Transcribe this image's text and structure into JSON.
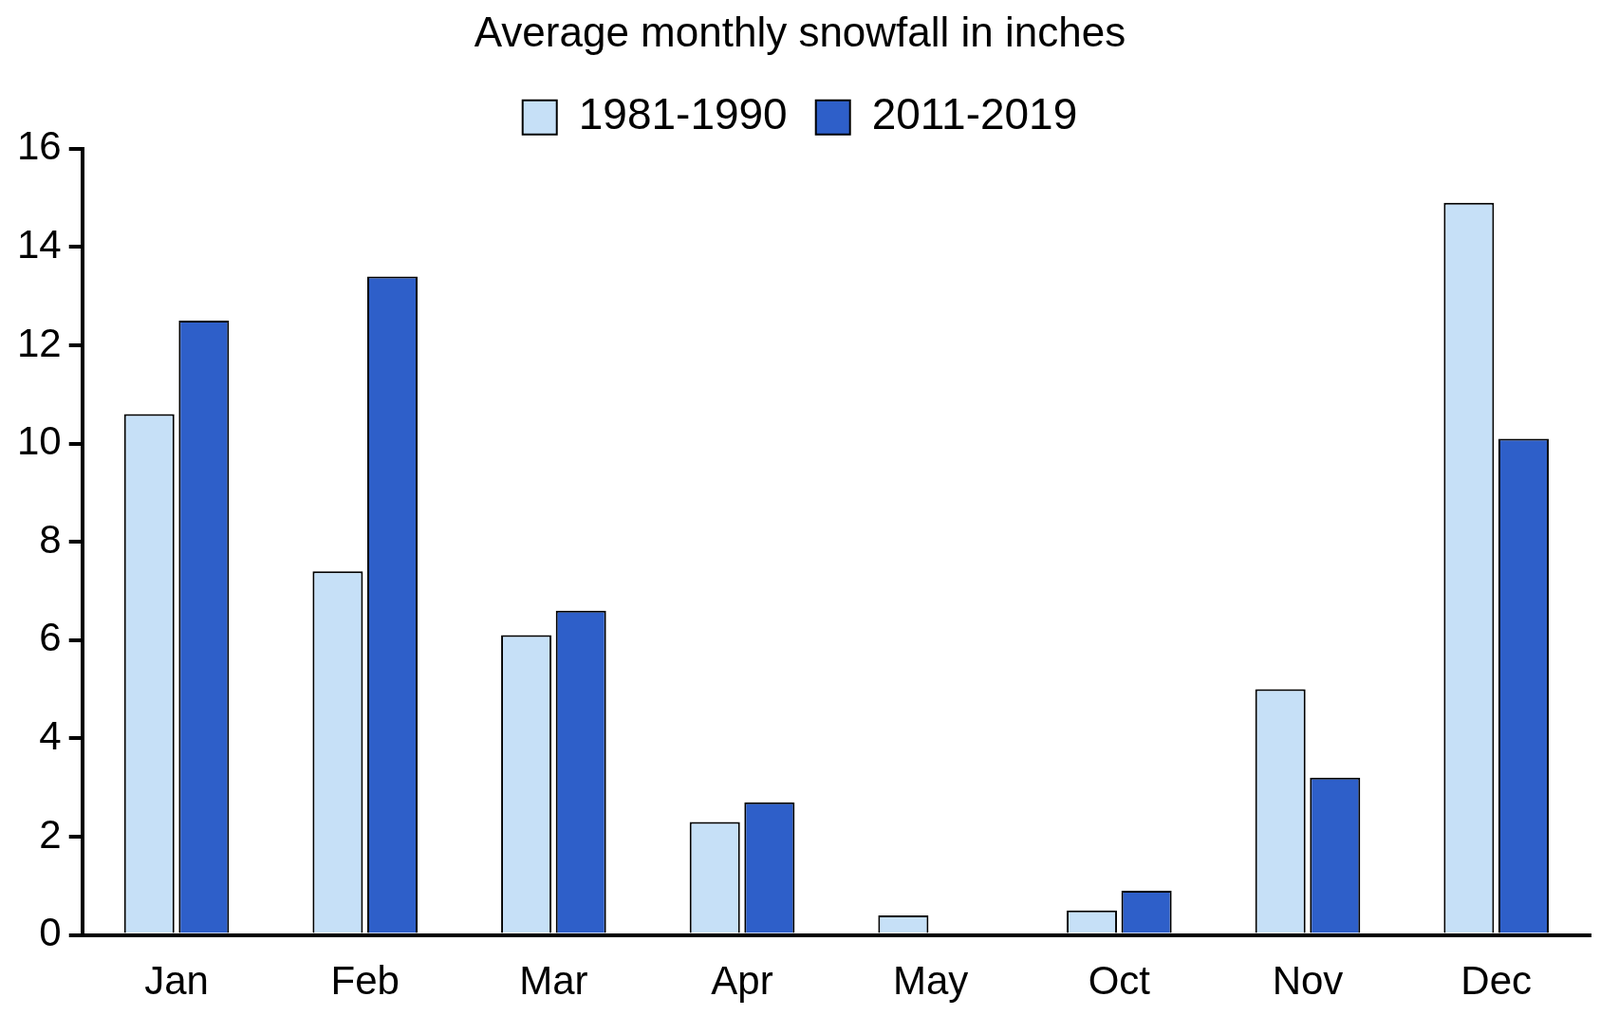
{
  "chart_data": {
    "type": "bar",
    "title": "Average monthly snowfall in inches",
    "categories": [
      "Jan",
      "Feb",
      "Mar",
      "Apr",
      "May",
      "Oct",
      "Nov",
      "Dec"
    ],
    "series": [
      {
        "name": "1981-1990",
        "color": "#c6e0f7",
        "values": [
          10.6,
          7.4,
          6.1,
          2.3,
          0.4,
          0.5,
          5.0,
          14.9
        ]
      },
      {
        "name": "2011-2019",
        "color": "#2e5fc9",
        "values": [
          12.5,
          13.4,
          6.6,
          2.7,
          0,
          0.9,
          3.2,
          10.1
        ]
      }
    ],
    "ylim": [
      0,
      16
    ],
    "yticks": [
      0,
      2,
      4,
      6,
      8,
      10,
      12,
      14,
      16
    ],
    "grid": false,
    "legend": "top"
  }
}
